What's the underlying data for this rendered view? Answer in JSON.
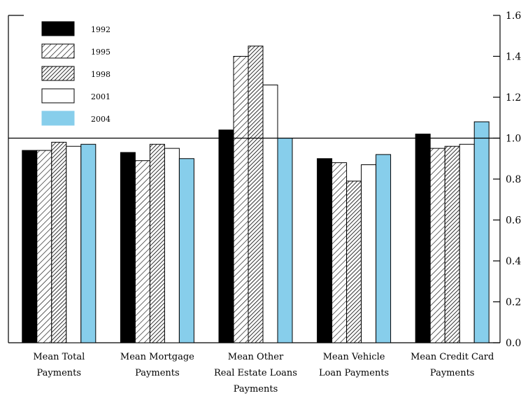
{
  "chart_data": {
    "type": "bar",
    "categories": [
      [
        "Mean Total",
        "Payments"
      ],
      [
        "Mean Mortgage",
        "Payments"
      ],
      [
        "Mean Other",
        "Real Estate Loans",
        "Payments"
      ],
      [
        "Mean Vehicle",
        "Loan Payments"
      ],
      [
        "Mean Credit Card",
        "Payments"
      ]
    ],
    "series": [
      {
        "name": "1992",
        "values": [
          0.94,
          0.93,
          1.04,
          0.9,
          1.02
        ],
        "style": "solid-black"
      },
      {
        "name": "1995",
        "values": [
          0.94,
          0.89,
          1.4,
          0.88,
          0.95
        ],
        "style": "hatch-light"
      },
      {
        "name": "1998",
        "values": [
          0.98,
          0.97,
          1.45,
          0.79,
          0.96
        ],
        "style": "hatch-dense"
      },
      {
        "name": "2001",
        "values": [
          0.96,
          0.95,
          1.26,
          0.87,
          0.97
        ],
        "style": "white"
      },
      {
        "name": "2004",
        "values": [
          0.97,
          0.9,
          1.0,
          0.92,
          1.08
        ],
        "style": "light-blue"
      }
    ],
    "ylim": [
      0,
      1.6
    ],
    "yticks": [
      "0.0",
      "0.2",
      "0.4",
      "0.6",
      "0.8",
      "1.0",
      "1.2",
      "1.4",
      "1.6"
    ],
    "reference_line": 1.0,
    "y_axis_side": "right",
    "legend_position": "top-left",
    "colors": {
      "solid": "#000000",
      "blue": "#87ceeb",
      "hatch": "#000000"
    }
  }
}
